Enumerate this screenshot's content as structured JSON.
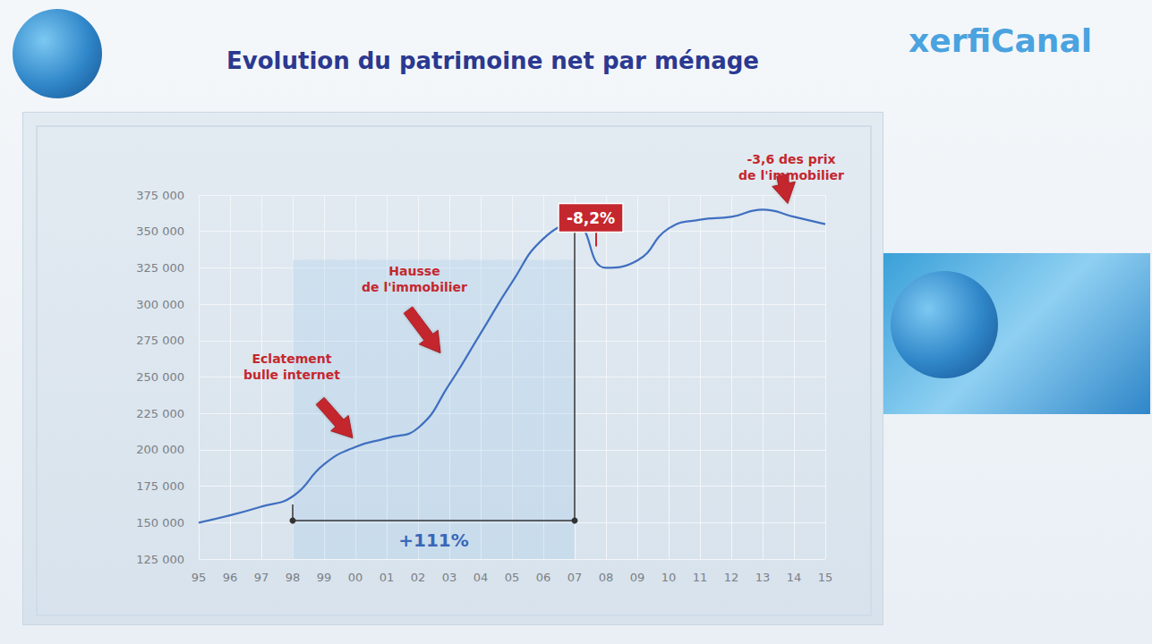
{
  "chart_data": {
    "type": "line",
    "title": "Evolution du patrimoine net par ménage",
    "subtitle": "xerfiCanal",
    "categories": [
      "95",
      "96",
      "97",
      "98",
      "99",
      "00",
      "01",
      "02",
      "03",
      "04",
      "05",
      "06",
      "07",
      "08",
      "09",
      "10",
      "11",
      "12",
      "13",
      "14",
      "15"
    ],
    "values": [
      150000,
      155000,
      161000,
      168000,
      190000,
      202000,
      208000,
      215000,
      245000,
      280000,
      315000,
      345000,
      355000,
      325000,
      330000,
      352000,
      358000,
      360000,
      365000,
      360000,
      355000
    ],
    "color": "#3f6fc0",
    "line_style": "solid",
    "marker": "none",
    "ylim": [
      125000,
      375000
    ],
    "yticks": [
      {
        "value": 125000,
        "label": "125 000"
      },
      {
        "value": 150000,
        "label": "150 000"
      },
      {
        "value": 175000,
        "label": "175 000"
      },
      {
        "value": 200000,
        "label": "200 000"
      },
      {
        "value": 225000,
        "label": "225 000"
      },
      {
        "value": 250000,
        "label": "250 000"
      },
      {
        "value": 275000,
        "label": "275 000"
      },
      {
        "value": 300000,
        "label": "300 000"
      },
      {
        "value": 325000,
        "label": "325 000"
      },
      {
        "value": 350000,
        "label": "350 000"
      },
      {
        "value": 375000,
        "label": "375 000"
      }
    ],
    "grid": true,
    "annotations": [
      {
        "text": "Eclatement\nbulle internet",
        "x": "00",
        "style": "arrow"
      },
      {
        "text": "Hausse\nde l'immobilier",
        "x": "03",
        "style": "arrow"
      },
      {
        "text": "-8,2%",
        "x": "07",
        "style": "box"
      },
      {
        "text": "-3,6 des prix\nde l'immobilier",
        "x": "14",
        "style": "arrow"
      }
    ],
    "span": {
      "text": "+111%",
      "from": "98",
      "to": "07"
    }
  }
}
